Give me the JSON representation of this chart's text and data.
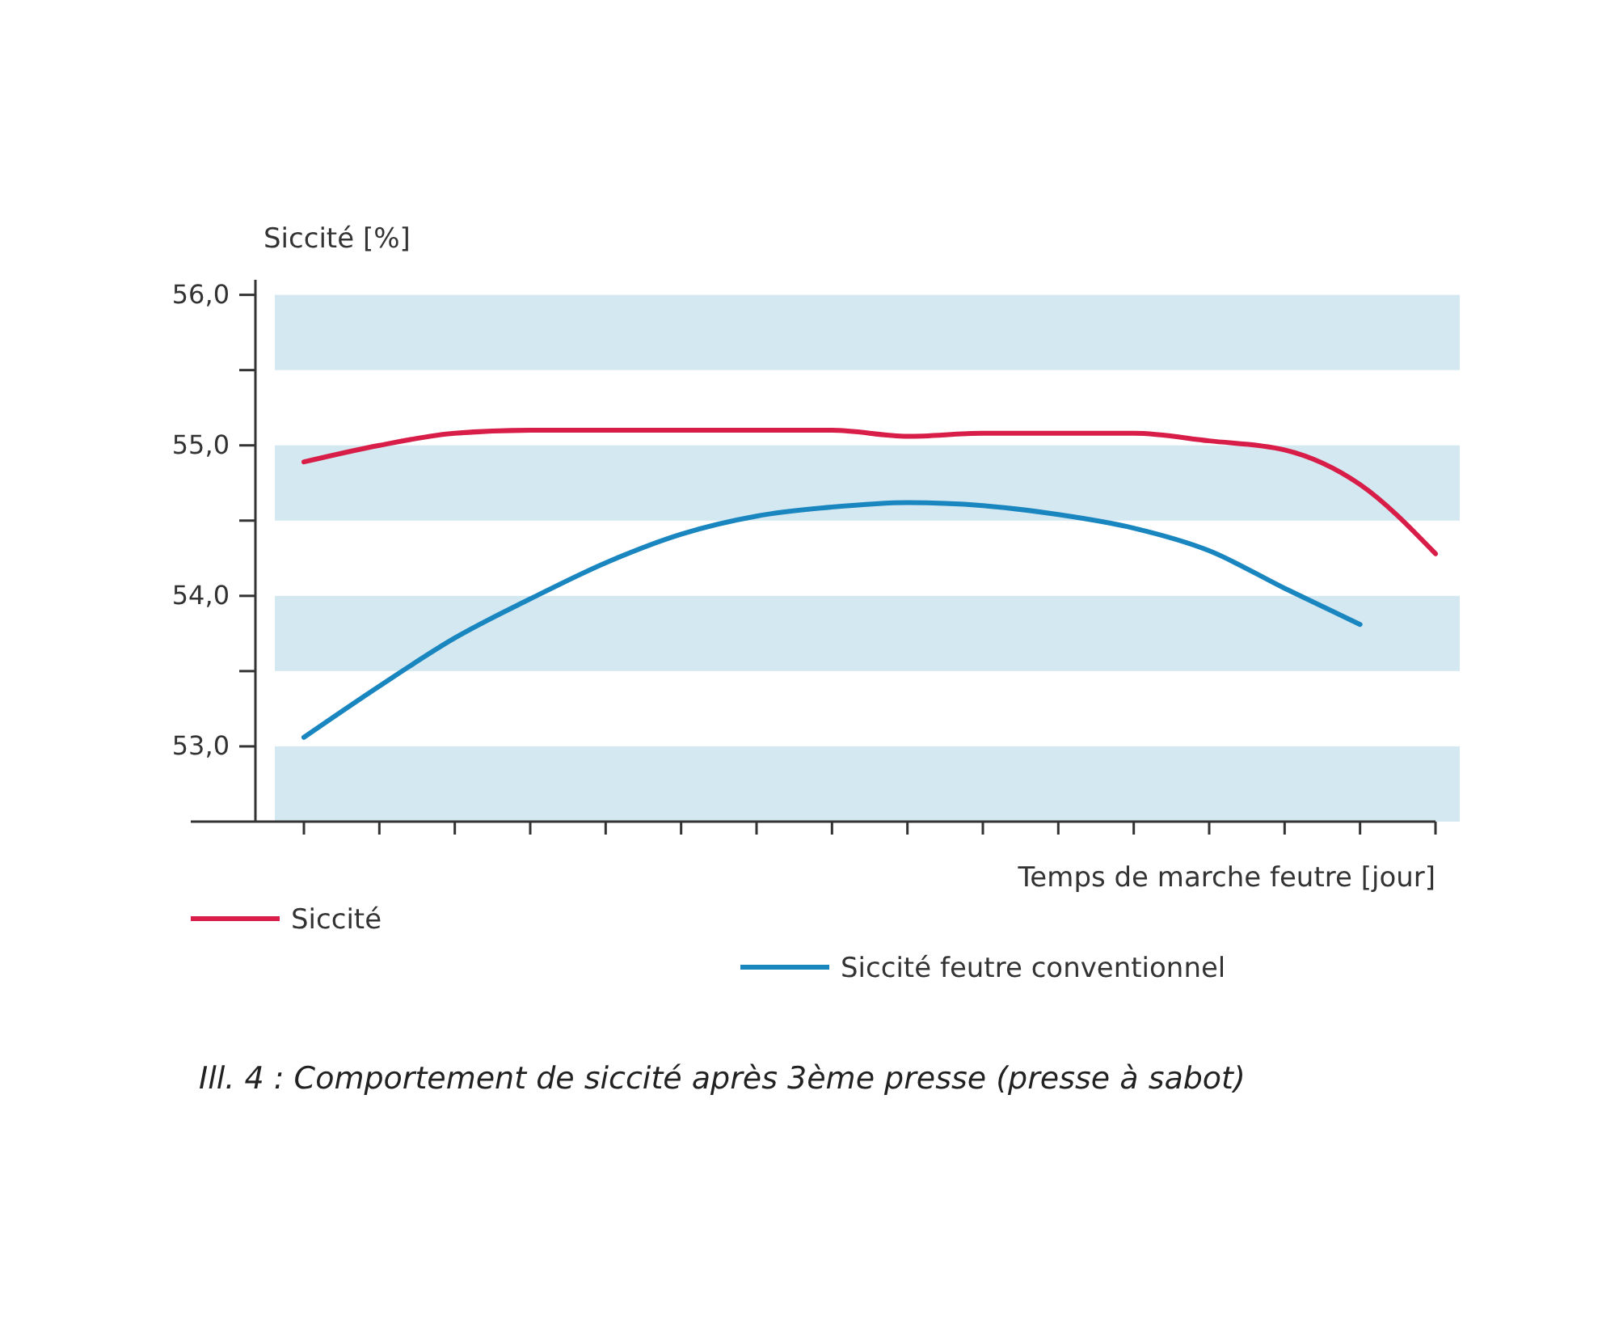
{
  "chart_data": {
    "type": "line",
    "xlabel": "Temps de marche feutre [jour]",
    "ylabel": "Siccité [%]",
    "categories": [
      null,
      null,
      null,
      null,
      null,
      null,
      null,
      null,
      null,
      null,
      null,
      null,
      null,
      null,
      null,
      null
    ],
    "series": [
      {
        "name": "Siccité",
        "color": "#d81e48",
        "values": [
          54.89,
          55.0,
          55.08,
          55.1,
          55.1,
          55.1,
          55.1,
          55.1,
          55.06,
          55.08,
          55.08,
          55.08,
          55.03,
          54.97,
          54.74,
          54.28
        ]
      },
      {
        "name": "Siccité feutre conventionnel",
        "color": "#1a86c0",
        "values": [
          53.06,
          53.4,
          53.72,
          53.98,
          54.22,
          54.41,
          54.53,
          54.59,
          54.62,
          54.6,
          54.54,
          54.45,
          54.3,
          54.05,
          53.81,
          null
        ]
      }
    ],
    "ylim": [
      52.5,
      56.1
    ],
    "yticks": [
      {
        "value": 53,
        "label": "53,0"
      },
      {
        "value": 53.5,
        "label": null
      },
      {
        "value": 54,
        "label": "54,0"
      },
      {
        "value": 54.5,
        "label": null
      },
      {
        "value": 55,
        "label": "55,0"
      },
      {
        "value": 55.5,
        "label": null
      },
      {
        "value": 56,
        "label": "56,0"
      }
    ],
    "bands": [
      {
        "axis": "y",
        "from": 55.5,
        "to": 56.0,
        "color": "#cfe6ef"
      },
      {
        "axis": "y",
        "from": 54.5,
        "to": 55.0,
        "color": "#cfe6ef"
      },
      {
        "axis": "y",
        "from": 53.5,
        "to": 54.0,
        "color": "#cfe6ef"
      },
      {
        "axis": "y",
        "from": 52.5,
        "to": 53.0,
        "color": "#cfe6ef"
      }
    ],
    "legend": "bottom",
    "grid": false,
    "marker": "none",
    "line_style": "solid",
    "annotations": [
      "Ill. 4 : Comportement de siccité après 3ème presse (presse à sabot)"
    ]
  }
}
